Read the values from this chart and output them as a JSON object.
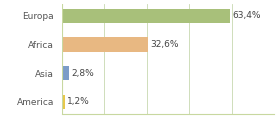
{
  "categories": [
    "America",
    "Asia",
    "Africa",
    "Europa"
  ],
  "values": [
    1.2,
    2.8,
    32.6,
    63.4
  ],
  "bar_colors": [
    "#e8c84a",
    "#7b9cc8",
    "#e8b882",
    "#a8c07a"
  ],
  "labels": [
    "1,2%",
    "2,8%",
    "32,6%",
    "63,4%"
  ],
  "xlim": [
    0,
    80
  ],
  "background_color": "#ffffff",
  "bar_height": 0.5,
  "label_fontsize": 6.5,
  "tick_fontsize": 6.5,
  "grid_color": "#d0dbb0",
  "grid_x_positions": [
    0,
    16,
    32,
    48,
    64,
    80
  ]
}
